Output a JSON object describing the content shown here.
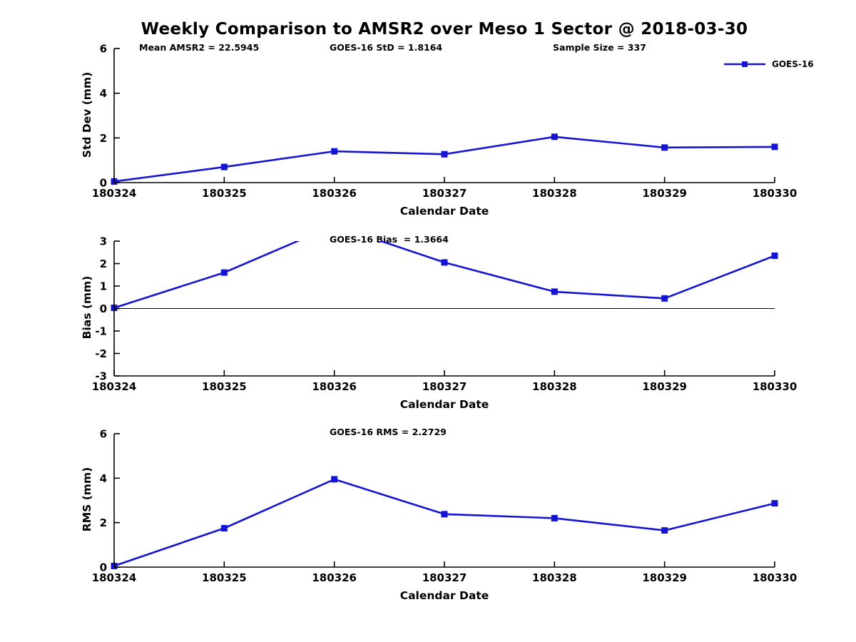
{
  "figure": {
    "title": "Weekly Comparison to AMSR2 over Meso 1 Sector @ 2018-03-30",
    "line_color": "#1414d2",
    "axis_color": "#000000",
    "background": "#ffffff"
  },
  "chart_data": [
    {
      "type": "line",
      "name": "std-dev-panel",
      "ylabel": "Std Dev (mm)",
      "xlabel": "Calendar Date",
      "categories": [
        "180324",
        "180325",
        "180326",
        "180327",
        "180328",
        "180329",
        "180330"
      ],
      "series": [
        {
          "name": "GOES-16",
          "values": [
            0.05,
            0.7,
            1.4,
            1.27,
            2.05,
            1.57,
            1.6
          ]
        }
      ],
      "ylim": [
        0,
        6
      ],
      "yticks": [
        "0",
        "2",
        "4",
        "6"
      ],
      "grid": false,
      "zero_line": false,
      "annotations": [
        "Mean AMSR2 = 22.5945",
        "GOES-16 StD = 1.8164",
        "Sample Size = 337"
      ],
      "legend": {
        "label": "GOES-16",
        "position": "top-right"
      }
    },
    {
      "type": "line",
      "name": "bias-panel",
      "ylabel": "Bias (mm)",
      "xlabel": "Calendar Date",
      "categories": [
        "180324",
        "180325",
        "180326",
        "180327",
        "180328",
        "180329",
        "180330"
      ],
      "series": [
        {
          "name": "GOES-16",
          "values": [
            0.03,
            1.6,
            3.7,
            2.05,
            0.75,
            0.45,
            2.35
          ]
        }
      ],
      "ylim": [
        -3,
        3
      ],
      "yticks": [
        "3",
        "2",
        "1",
        "0",
        "-1",
        "-2",
        "-3"
      ],
      "grid": false,
      "zero_line": true,
      "clipped_note": "point 180326 exceeds top y-limit; line clipped at 3",
      "annotations": [
        "GOES-16 Bias  = 1.3664"
      ]
    },
    {
      "type": "line",
      "name": "rms-panel",
      "ylabel": "RMS (mm)",
      "xlabel": "Calendar Date",
      "categories": [
        "180324",
        "180325",
        "180326",
        "180327",
        "180328",
        "180329",
        "180330"
      ],
      "series": [
        {
          "name": "GOES-16",
          "values": [
            0.05,
            1.75,
            3.95,
            2.38,
            2.2,
            1.65,
            2.87
          ]
        }
      ],
      "ylim": [
        0,
        6
      ],
      "yticks": [
        "0",
        "2",
        "4",
        "6"
      ],
      "grid": false,
      "zero_line": false,
      "annotations": [
        "GOES-16 RMS = 2.2729"
      ]
    }
  ]
}
